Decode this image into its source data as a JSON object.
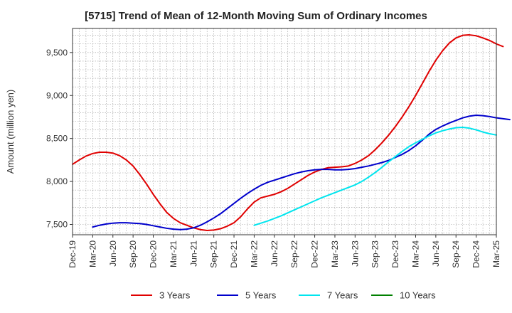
{
  "chart_data": {
    "type": "line",
    "title": "[5715]  Trend of Mean of 12-Month Moving Sum of Ordinary Incomes",
    "xlabel": "",
    "ylabel": "Amount (million yen)",
    "ylim": [
      7380,
      9780
    ],
    "yticks": [
      7500,
      8000,
      8500,
      9000,
      9500
    ],
    "ytick_labels": [
      "7,500",
      "8,000",
      "8,500",
      "9,000",
      "9,500"
    ],
    "x_tick_labels": [
      "Dec-19",
      "Mar-20",
      "Jun-20",
      "Sep-20",
      "Dec-20",
      "Mar-21",
      "Jun-21",
      "Sep-21",
      "Dec-21",
      "Mar-22",
      "Jun-22",
      "Sep-22",
      "Dec-22",
      "Mar-23",
      "Jun-23",
      "Sep-23",
      "Dec-23",
      "Mar-24",
      "Jun-24",
      "Sep-24",
      "Dec-24",
      "Mar-25"
    ],
    "x_range_months": [
      0,
      63
    ],
    "grid": true,
    "legend_position": "bottom",
    "series": [
      {
        "name": "3 Years",
        "color": "#e00000",
        "start_month": 0,
        "values": [
          8200,
          8250,
          8295,
          8325,
          8340,
          8340,
          8330,
          8300,
          8250,
          8180,
          8080,
          7970,
          7850,
          7740,
          7640,
          7570,
          7520,
          7490,
          7460,
          7440,
          7430,
          7435,
          7450,
          7480,
          7520,
          7590,
          7680,
          7760,
          7810,
          7830,
          7850,
          7880,
          7920,
          7970,
          8020,
          8070,
          8110,
          8140,
          8160,
          8165,
          8170,
          8180,
          8210,
          8250,
          8300,
          8370,
          8450,
          8540,
          8640,
          8750,
          8870,
          9000,
          9140,
          9280,
          9410,
          9520,
          9610,
          9670,
          9700,
          9705,
          9695,
          9670,
          9640,
          9600,
          9570
        ]
      },
      {
        "name": "5 Years",
        "color": "#0000cc",
        "start_month": 3,
        "values": [
          7470,
          7490,
          7505,
          7515,
          7520,
          7520,
          7515,
          7510,
          7500,
          7485,
          7470,
          7455,
          7445,
          7440,
          7445,
          7460,
          7490,
          7530,
          7575,
          7625,
          7685,
          7745,
          7805,
          7860,
          7910,
          7955,
          7990,
          8015,
          8040,
          8065,
          8090,
          8110,
          8125,
          8135,
          8140,
          8140,
          8135,
          8135,
          8140,
          8150,
          8165,
          8180,
          8200,
          8220,
          8245,
          8280,
          8315,
          8360,
          8415,
          8480,
          8550,
          8605,
          8645,
          8680,
          8710,
          8740,
          8760,
          8770,
          8765,
          8755,
          8740,
          8730,
          8720
        ]
      },
      {
        "name": "7 Years",
        "color": "#00e5ee",
        "start_month": 27,
        "values": [
          7490,
          7515,
          7540,
          7570,
          7600,
          7635,
          7670,
          7705,
          7740,
          7775,
          7810,
          7840,
          7870,
          7900,
          7930,
          7960,
          8000,
          8050,
          8105,
          8165,
          8230,
          8290,
          8350,
          8405,
          8450,
          8490,
          8530,
          8565,
          8590,
          8610,
          8625,
          8630,
          8620,
          8600,
          8575,
          8555,
          8540
        ]
      },
      {
        "name": "10 Years",
        "color": "#008000",
        "start_month": 0,
        "values": []
      }
    ]
  }
}
